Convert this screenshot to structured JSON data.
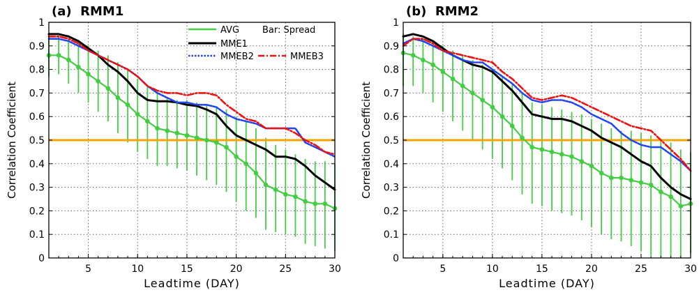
{
  "figure": {
    "legend": {
      "items": [
        {
          "label": "AVG",
          "color": "#44cc44",
          "style": "solid"
        },
        {
          "label": "MME1",
          "color": "#000000",
          "style": "solid"
        },
        {
          "label": "MMEB2",
          "color": "#2244ee",
          "style": "dotted"
        },
        {
          "label": "MMEB3",
          "color": "#ee1111",
          "style": "dashdot"
        }
      ],
      "bar_note": "Bar: Spread",
      "placement": "top-center of panel (a)"
    }
  },
  "chart_data": [
    {
      "type": "line",
      "title": "(a)  RMM1",
      "xlabel": "Leadtime (DAY)",
      "ylabel": "Correlation Coefficient",
      "xlim": [
        1,
        30
      ],
      "ylim": [
        0,
        1
      ],
      "xticks": [
        "5",
        "10",
        "15",
        "20",
        "25",
        "30"
      ],
      "yticks": [
        "0",
        "0.1",
        "0.2",
        "0.3",
        "0.4",
        "0.5",
        "0.6",
        "0.7",
        "0.8",
        "0.9",
        "1"
      ],
      "grid": true,
      "reference_line": {
        "y": 0.5,
        "color": "#f0a500"
      },
      "x": [
        1,
        2,
        3,
        4,
        5,
        6,
        7,
        8,
        9,
        10,
        11,
        12,
        13,
        14,
        15,
        16,
        17,
        18,
        19,
        20,
        21,
        22,
        23,
        24,
        25,
        26,
        27,
        28,
        29,
        30
      ],
      "series": [
        {
          "name": "AVG",
          "color": "#44cc44",
          "values": [
            0.86,
            0.86,
            0.84,
            0.81,
            0.78,
            0.75,
            0.72,
            0.68,
            0.65,
            0.61,
            0.58,
            0.55,
            0.54,
            0.53,
            0.52,
            0.51,
            0.5,
            0.49,
            0.47,
            0.43,
            0.4,
            0.36,
            0.31,
            0.29,
            0.27,
            0.26,
            0.24,
            0.23,
            0.23,
            0.21
          ],
          "spread_low": [
            0.77,
            0.78,
            0.74,
            0.7,
            0.66,
            0.62,
            0.58,
            0.53,
            0.49,
            0.45,
            0.42,
            0.39,
            0.39,
            0.38,
            0.37,
            0.35,
            0.33,
            0.31,
            0.28,
            0.24,
            0.2,
            0.17,
            0.12,
            0.11,
            0.1,
            0.09,
            0.06,
            0.05,
            0.04,
            0.03
          ],
          "spread_high": [
            0.94,
            0.94,
            0.93,
            0.92,
            0.9,
            0.88,
            0.86,
            0.83,
            0.8,
            0.76,
            0.73,
            0.7,
            0.68,
            0.67,
            0.67,
            0.66,
            0.65,
            0.64,
            0.63,
            0.6,
            0.58,
            0.55,
            0.51,
            0.48,
            0.46,
            0.44,
            0.42,
            0.41,
            0.41,
            0.4
          ]
        },
        {
          "name": "MME1",
          "color": "#000000",
          "values": [
            0.95,
            0.95,
            0.94,
            0.92,
            0.89,
            0.86,
            0.82,
            0.79,
            0.75,
            0.7,
            0.67,
            0.665,
            0.665,
            0.66,
            0.65,
            0.645,
            0.63,
            0.61,
            0.56,
            0.52,
            0.5,
            0.48,
            0.46,
            0.43,
            0.43,
            0.42,
            0.39,
            0.35,
            0.32,
            0.29
          ]
        },
        {
          "name": "MMEB2",
          "color": "#2244ee",
          "values": [
            0.93,
            0.93,
            0.92,
            0.9,
            0.88,
            0.86,
            0.84,
            0.82,
            0.8,
            0.77,
            0.73,
            0.7,
            0.68,
            0.66,
            0.66,
            0.65,
            0.65,
            0.64,
            0.61,
            0.59,
            0.58,
            0.57,
            0.55,
            0.55,
            0.55,
            0.55,
            0.49,
            0.47,
            0.45,
            0.43
          ]
        },
        {
          "name": "MMEB3",
          "color": "#ee1111",
          "values": [
            0.94,
            0.94,
            0.93,
            0.91,
            0.88,
            0.86,
            0.84,
            0.82,
            0.8,
            0.77,
            0.73,
            0.71,
            0.7,
            0.7,
            0.69,
            0.7,
            0.7,
            0.69,
            0.65,
            0.62,
            0.59,
            0.58,
            0.55,
            0.55,
            0.55,
            0.53,
            0.5,
            0.48,
            0.45,
            0.44
          ]
        }
      ]
    },
    {
      "type": "line",
      "title": "(b)  RMM2",
      "xlabel": "Leadtime (DAY)",
      "ylabel": "Correlation Coefficient",
      "xlim": [
        1,
        30
      ],
      "ylim": [
        0,
        1
      ],
      "xticks": [
        "5",
        "10",
        "15",
        "20",
        "25",
        "30"
      ],
      "yticks": [
        "0",
        "0.1",
        "0.2",
        "0.3",
        "0.4",
        "0.5",
        "0.6",
        "0.7",
        "0.8",
        "0.9",
        "1"
      ],
      "grid": true,
      "reference_line": {
        "y": 0.5,
        "color": "#f0a500"
      },
      "x": [
        1,
        2,
        3,
        4,
        5,
        6,
        7,
        8,
        9,
        10,
        11,
        12,
        13,
        14,
        15,
        16,
        17,
        18,
        19,
        20,
        21,
        22,
        23,
        24,
        25,
        26,
        27,
        28,
        29,
        30
      ],
      "series": [
        {
          "name": "AVG",
          "color": "#44cc44",
          "values": [
            0.87,
            0.86,
            0.84,
            0.82,
            0.79,
            0.76,
            0.73,
            0.7,
            0.67,
            0.64,
            0.6,
            0.56,
            0.51,
            0.47,
            0.46,
            0.45,
            0.44,
            0.43,
            0.41,
            0.39,
            0.36,
            0.34,
            0.34,
            0.33,
            0.32,
            0.31,
            0.28,
            0.26,
            0.22,
            0.23
          ],
          "spread_low": [
            0.73,
            0.73,
            0.7,
            0.66,
            0.62,
            0.58,
            0.54,
            0.5,
            0.46,
            0.42,
            0.38,
            0.33,
            0.27,
            0.23,
            0.22,
            0.2,
            0.19,
            0.18,
            0.16,
            0.13,
            0.1,
            0.08,
            0.07,
            0.05,
            0.03,
            0.01,
            0.0,
            0.0,
            0.0,
            0.02
          ],
          "spread_high": [
            0.95,
            0.94,
            0.93,
            0.92,
            0.9,
            0.88,
            0.86,
            0.84,
            0.82,
            0.8,
            0.77,
            0.74,
            0.7,
            0.66,
            0.65,
            0.64,
            0.63,
            0.62,
            0.61,
            0.59,
            0.57,
            0.55,
            0.54,
            0.54,
            0.53,
            0.52,
            0.5,
            0.49,
            0.46,
            0.45
          ]
        },
        {
          "name": "MME1",
          "color": "#000000",
          "values": [
            0.94,
            0.95,
            0.94,
            0.92,
            0.89,
            0.86,
            0.84,
            0.82,
            0.81,
            0.79,
            0.75,
            0.71,
            0.66,
            0.61,
            0.6,
            0.59,
            0.59,
            0.58,
            0.56,
            0.54,
            0.51,
            0.49,
            0.47,
            0.44,
            0.41,
            0.39,
            0.34,
            0.3,
            0.27,
            0.25
          ]
        },
        {
          "name": "MMEB2",
          "color": "#2244ee",
          "values": [
            0.91,
            0.93,
            0.92,
            0.9,
            0.88,
            0.86,
            0.84,
            0.83,
            0.83,
            0.8,
            0.77,
            0.74,
            0.7,
            0.67,
            0.66,
            0.67,
            0.67,
            0.66,
            0.64,
            0.61,
            0.59,
            0.57,
            0.53,
            0.5,
            0.48,
            0.47,
            0.47,
            0.44,
            0.41,
            0.37
          ]
        },
        {
          "name": "MMEB3",
          "color": "#ee1111",
          "values": [
            0.9,
            0.93,
            0.93,
            0.91,
            0.88,
            0.87,
            0.86,
            0.85,
            0.84,
            0.83,
            0.79,
            0.76,
            0.72,
            0.68,
            0.67,
            0.68,
            0.69,
            0.68,
            0.66,
            0.64,
            0.62,
            0.6,
            0.58,
            0.56,
            0.55,
            0.54,
            0.5,
            0.46,
            0.42,
            0.37
          ]
        }
      ]
    }
  ]
}
